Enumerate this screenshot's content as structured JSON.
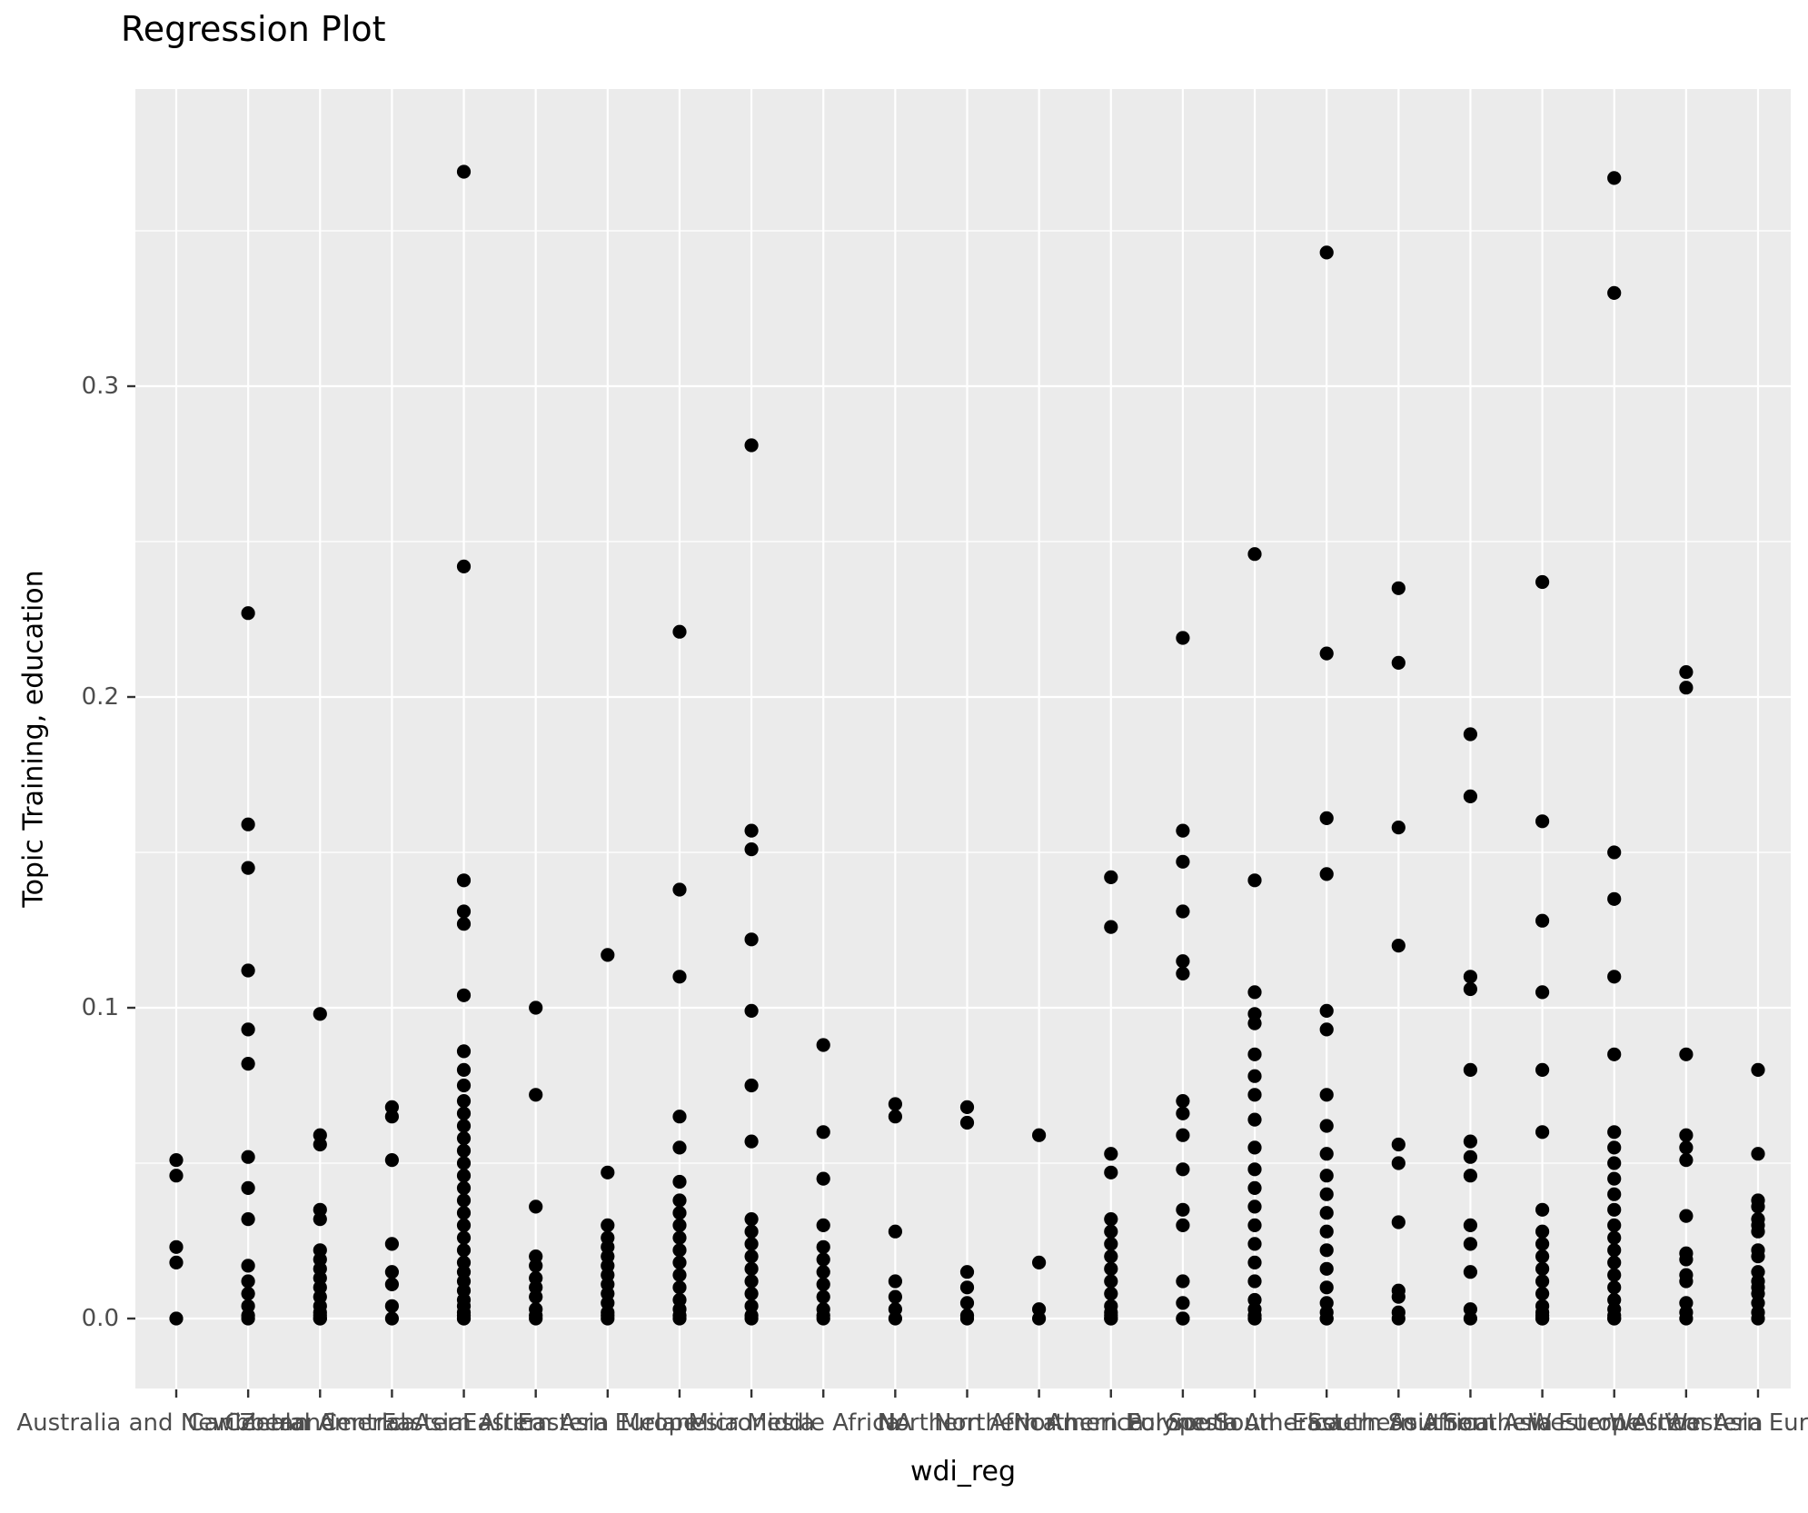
{
  "title": "Regression Plot",
  "axes": {
    "x_title": "wdi_reg",
    "y_title": "Topic Training, education"
  },
  "colors": {
    "page_bg": "#FFFFFF",
    "panel_bg": "#EBEBEB",
    "grid": "#FFFFFF",
    "point": "#000000",
    "tick_text": "#4D4D4D",
    "tick_mark": "#333333",
    "title_text": "#000000"
  },
  "chart_data": {
    "type": "scatter",
    "title": "Regression Plot",
    "xlabel": "wdi_reg",
    "ylabel": "Topic Training, education",
    "ylim": [
      -0.0225,
      0.3956
    ],
    "y_tick_values": [
      0.0,
      0.1,
      0.2,
      0.3
    ],
    "y_tick_labels": [
      "0.0",
      "0.1",
      "0.2",
      "0.3"
    ],
    "y_minor_gridlines": [
      0.05,
      0.15,
      0.25,
      0.35
    ],
    "grid": true,
    "legend": "none",
    "point_color": "#000000",
    "categories": [
      "Australia and New Zealand",
      "Caribbean",
      "Central America",
      "Central Asia",
      "Eastern Africa",
      "Eastern Asia",
      "Eastern Europe",
      "Melanesia",
      "Micronesia",
      "Middle Africa",
      "NA",
      "Northern Africa",
      "Northern America",
      "Northern Europe",
      "Polynesia",
      "South America",
      "South-Eastern Asia",
      "Southern Africa",
      "Southern Asia",
      "Southern Europe",
      "Western Africa",
      "Western Asia",
      "Western Europe"
    ],
    "series": [
      {
        "name": "Australia and New Zealand",
        "values": [
          0.051,
          0.046,
          0.023,
          0.018,
          0
        ]
      },
      {
        "name": "Caribbean",
        "values": [
          0.227,
          0.159,
          0.145,
          0.112,
          0.093,
          0.082,
          0.052,
          0.042,
          0.032,
          0.017,
          0.012,
          0.008,
          0.004,
          0.001,
          0
        ]
      },
      {
        "name": "Central America",
        "values": [
          0.098,
          0.059,
          0.056,
          0.035,
          0.032,
          0.022,
          0.019,
          0.016,
          0.013,
          0.01,
          0.007,
          0.004,
          0.002,
          0.001,
          0,
          0
        ]
      },
      {
        "name": "Central Asia",
        "values": [
          0.068,
          0.065,
          0.051,
          0.024,
          0.015,
          0.011,
          0.004,
          0
        ]
      },
      {
        "name": "Eastern Africa",
        "values": [
          0.369,
          0.242,
          0.141,
          0.131,
          0.127,
          0.104,
          0.086,
          0.08,
          0.075,
          0.07,
          0.066,
          0.062,
          0.058,
          0.054,
          0.05,
          0.046,
          0.042,
          0.038,
          0.034,
          0.03,
          0.026,
          0.022,
          0.018,
          0.015,
          0.012,
          0.009,
          0.006,
          0.004,
          0.002,
          0.001,
          0,
          0
        ]
      },
      {
        "name": "Eastern Asia",
        "values": [
          0.1,
          0.072,
          0.036,
          0.02,
          0.017,
          0.013,
          0.01,
          0.007,
          0.003,
          0.001,
          0
        ]
      },
      {
        "name": "Eastern Europe",
        "values": [
          0.117,
          0.047,
          0.03,
          0.026,
          0.023,
          0.02,
          0.017,
          0.014,
          0.011,
          0.008,
          0.005,
          0.002,
          0.001,
          0
        ]
      },
      {
        "name": "Melanesia",
        "values": [
          0.221,
          0.138,
          0.11,
          0.065,
          0.055,
          0.044,
          0.038,
          0.034,
          0.03,
          0.026,
          0.022,
          0.018,
          0.014,
          0.01,
          0.006,
          0.003,
          0.001,
          0
        ]
      },
      {
        "name": "Micronesia",
        "values": [
          0.281,
          0.157,
          0.151,
          0.122,
          0.099,
          0.075,
          0.057,
          0.032,
          0.028,
          0.024,
          0.02,
          0.016,
          0.012,
          0.008,
          0.004,
          0.001,
          0
        ]
      },
      {
        "name": "Middle Africa",
        "values": [
          0.088,
          0.06,
          0.045,
          0.03,
          0.023,
          0.019,
          0.015,
          0.011,
          0.007,
          0.003,
          0.001,
          0
        ]
      },
      {
        "name": "NA",
        "values": [
          0.069,
          0.065,
          0.028,
          0.012,
          0.007,
          0.003,
          0
        ]
      },
      {
        "name": "Northern Africa",
        "values": [
          0.068,
          0.063,
          0.015,
          0.01,
          0.005,
          0.001,
          0
        ]
      },
      {
        "name": "Northern America",
        "values": [
          0.059,
          0.018,
          0.003,
          0
        ]
      },
      {
        "name": "Northern Europe",
        "values": [
          0.142,
          0.126,
          0.053,
          0.047,
          0.032,
          0.028,
          0.024,
          0.02,
          0.016,
          0.012,
          0.008,
          0.004,
          0.002,
          0.001,
          0,
          0
        ]
      },
      {
        "name": "Polynesia",
        "values": [
          0.219,
          0.157,
          0.147,
          0.131,
          0.115,
          0.111,
          0.07,
          0.066,
          0.059,
          0.048,
          0.035,
          0.03,
          0.012,
          0.005,
          0,
          0
        ]
      },
      {
        "name": "South America",
        "values": [
          0.246,
          0.141,
          0.105,
          0.098,
          0.095,
          0.085,
          0.078,
          0.072,
          0.064,
          0.055,
          0.048,
          0.042,
          0.036,
          0.03,
          0.024,
          0.018,
          0.012,
          0.006,
          0.003,
          0.001,
          0,
          0
        ]
      },
      {
        "name": "South-Eastern Asia",
        "values": [
          0.343,
          0.214,
          0.161,
          0.143,
          0.099,
          0.093,
          0.072,
          0.062,
          0.053,
          0.046,
          0.04,
          0.034,
          0.028,
          0.022,
          0.016,
          0.01,
          0.005,
          0.002,
          0,
          0
        ]
      },
      {
        "name": "Southern Africa",
        "values": [
          0.235,
          0.211,
          0.158,
          0.12,
          0.056,
          0.05,
          0.031,
          0.009,
          0.007,
          0.002,
          0
        ]
      },
      {
        "name": "Southern Asia",
        "values": [
          0.188,
          0.168,
          0.11,
          0.106,
          0.08,
          0.057,
          0.052,
          0.046,
          0.03,
          0.024,
          0.015,
          0.003,
          0
        ]
      },
      {
        "name": "Southern Europe",
        "values": [
          0.237,
          0.16,
          0.128,
          0.105,
          0.08,
          0.06,
          0.035,
          0.028,
          0.024,
          0.02,
          0.016,
          0.012,
          0.008,
          0.004,
          0.002,
          0.001,
          0,
          0
        ]
      },
      {
        "name": "Western Africa",
        "values": [
          0.367,
          0.33,
          0.15,
          0.135,
          0.11,
          0.085,
          0.06,
          0.055,
          0.05,
          0.045,
          0.04,
          0.035,
          0.03,
          0.026,
          0.022,
          0.018,
          0.014,
          0.01,
          0.006,
          0.003,
          0.001,
          0,
          0
        ]
      },
      {
        "name": "Western Asia",
        "values": [
          0.208,
          0.203,
          0.085,
          0.059,
          0.055,
          0.051,
          0.033,
          0.021,
          0.019,
          0.014,
          0.012,
          0.005,
          0.002,
          0
        ]
      },
      {
        "name": "Western Europe",
        "values": [
          0.08,
          0.053,
          0.038,
          0.036,
          0.032,
          0.03,
          0.028,
          0.022,
          0.02,
          0.015,
          0.012,
          0.01,
          0.008,
          0.005,
          0.002,
          0
        ]
      }
    ]
  }
}
